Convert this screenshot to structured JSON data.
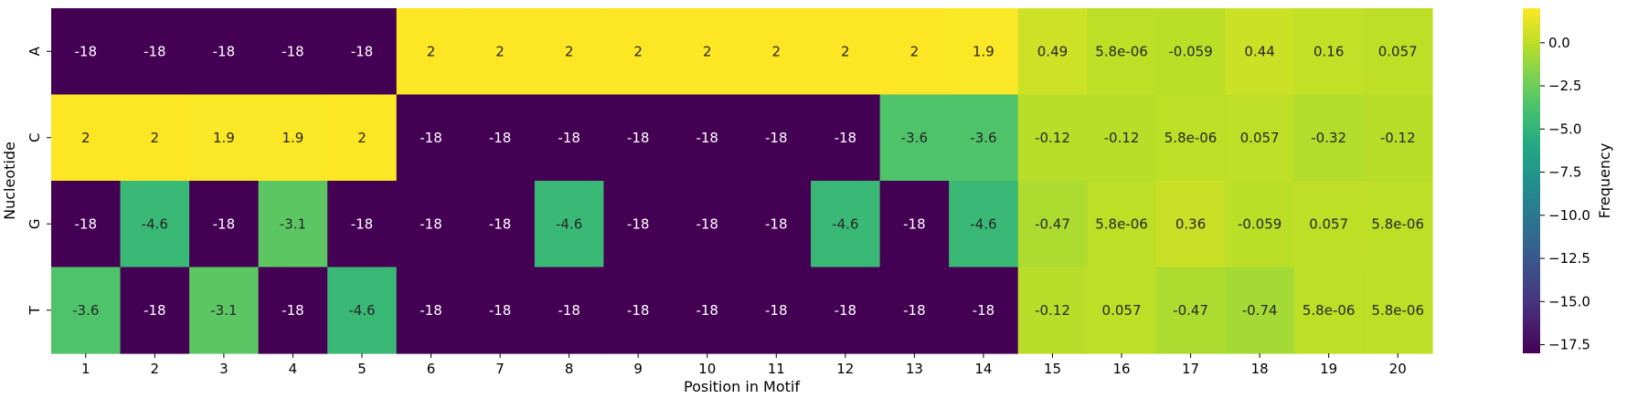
{
  "chart_data": {
    "type": "heatmap",
    "title": "",
    "xlabel": "Position in Motif",
    "ylabel": "Nucleotide",
    "colorbar_label": "Frequency",
    "colormap": "viridis",
    "vmin": -18,
    "vmax": 2,
    "colorbar_ticks": [
      "0.0",
      "−2.5",
      "−5.0",
      "−7.5",
      "−10.0",
      "−12.5",
      "−15.0",
      "−17.5"
    ],
    "colorbar_tick_values": [
      0,
      -2.5,
      -5,
      -7.5,
      -10,
      -12.5,
      -15,
      -17.5
    ],
    "x_categories": [
      "1",
      "2",
      "3",
      "4",
      "5",
      "6",
      "7",
      "8",
      "9",
      "10",
      "11",
      "12",
      "13",
      "14",
      "15",
      "16",
      "17",
      "18",
      "19",
      "20"
    ],
    "y_categories": [
      "A",
      "C",
      "G",
      "T"
    ],
    "values": [
      [
        -18,
        -18,
        -18,
        -18,
        -18,
        2,
        2,
        2,
        2,
        2,
        2,
        2,
        2,
        1.9,
        0.49,
        5.8e-06,
        -0.059,
        0.44,
        0.16,
        0.057
      ],
      [
        2,
        2,
        1.9,
        1.9,
        2,
        -18,
        -18,
        -18,
        -18,
        -18,
        -18,
        -18,
        -3.6,
        -3.6,
        -0.12,
        -0.12,
        5.8e-06,
        0.057,
        -0.32,
        -0.12
      ],
      [
        -18,
        -4.6,
        -18,
        -3.1,
        -18,
        -18,
        -18,
        -4.6,
        -18,
        -18,
        -18,
        -4.6,
        -18,
        -4.6,
        -0.47,
        5.8e-06,
        0.36,
        -0.059,
        0.057,
        5.8e-06
      ],
      [
        -3.6,
        -18,
        -3.1,
        -18,
        -4.6,
        -18,
        -18,
        -18,
        -18,
        -18,
        -18,
        -18,
        -18,
        -18,
        -0.12,
        0.057,
        -0.47,
        -0.74,
        5.8e-06,
        5.8e-06
      ]
    ],
    "labels": [
      [
        "-18",
        "-18",
        "-18",
        "-18",
        "-18",
        "2",
        "2",
        "2",
        "2",
        "2",
        "2",
        "2",
        "2",
        "1.9",
        "0.49",
        "5.8e-06",
        "-0.059",
        "0.44",
        "0.16",
        "0.057"
      ],
      [
        "2",
        "2",
        "1.9",
        "1.9",
        "2",
        "-18",
        "-18",
        "-18",
        "-18",
        "-18",
        "-18",
        "-18",
        "-3.6",
        "-3.6",
        "-0.12",
        "-0.12",
        "5.8e-06",
        "0.057",
        "-0.32",
        "-0.12"
      ],
      [
        "-18",
        "-4.6",
        "-18",
        "-3.1",
        "-18",
        "-18",
        "-18",
        "-4.6",
        "-18",
        "-18",
        "-18",
        "-4.6",
        "-18",
        "-4.6",
        "-0.47",
        "5.8e-06",
        "0.36",
        "-0.059",
        "0.057",
        "5.8e-06"
      ],
      [
        "-3.6",
        "-18",
        "-3.1",
        "-18",
        "-4.6",
        "-18",
        "-18",
        "-18",
        "-18",
        "-18",
        "-18",
        "-18",
        "-18",
        "-18",
        "-0.12",
        "0.057",
        "-0.47",
        "-0.74",
        "5.8e-06",
        "5.8e-06"
      ]
    ]
  }
}
